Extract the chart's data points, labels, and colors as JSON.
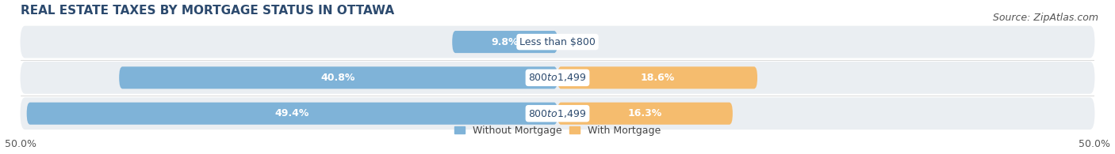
{
  "title": "Real Estate Taxes by Mortgage Status in Ottawa",
  "source": "Source: ZipAtlas.com",
  "rows": [
    {
      "label": "Less than $800",
      "without_pct": 9.8,
      "with_pct": 0.0
    },
    {
      "label": "$800 to $1,499",
      "without_pct": 40.8,
      "with_pct": 18.6
    },
    {
      "label": "$800 to $1,499",
      "without_pct": 49.4,
      "with_pct": 16.3
    }
  ],
  "xlim": [
    -50,
    50
  ],
  "xticklabels_left": "50.0%",
  "xticklabels_right": "50.0%",
  "color_without": "#7fb3d8",
  "color_with": "#f5bc6e",
  "row_bg_color": "#eaeef2",
  "legend_without": "Without Mortgage",
  "legend_with": "With Mortgage",
  "bar_height": 0.62,
  "title_fontsize": 11,
  "label_fontsize": 9,
  "pct_fontsize": 9,
  "tick_fontsize": 9,
  "source_fontsize": 9,
  "title_color": "#2c4a6e",
  "source_color": "#555555",
  "pct_color_inside": "#ffffff",
  "pct_color_outside": "#444444",
  "center_label_color": "#2c4a6e"
}
